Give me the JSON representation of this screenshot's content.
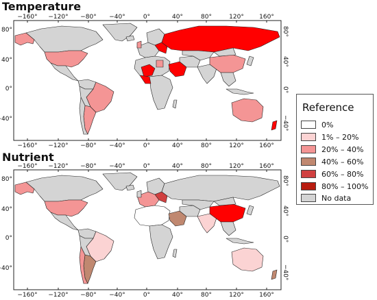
{
  "maps": [
    {
      "title": "Temperature"
    },
    {
      "title": "Nutrient"
    }
  ],
  "axes": {
    "lon_ticks": [
      "−160°",
      "−120°",
      "−80°",
      "−40°",
      "0°",
      "40°",
      "80°",
      "120°",
      "160°"
    ],
    "lat_ticks": [
      "80°",
      "40°",
      "0°",
      "−40°"
    ]
  },
  "legend": {
    "title": "Reference",
    "items": [
      {
        "label": "0%",
        "color": "#ffffff"
      },
      {
        "label": "1% – 20%",
        "color": "#fbd3d3"
      },
      {
        "label": "20% – 40%",
        "color": "#f49595"
      },
      {
        "label": "40% – 60%",
        "color": "#c08870"
      },
      {
        "label": "60% – 80%",
        "color": "#d04040"
      },
      {
        "label": "80% – 100%",
        "color": "#b81c10"
      },
      {
        "label": "No data",
        "color": "#d4d4d4"
      }
    ]
  },
  "colors": {
    "ocean": "#ffffff",
    "border": "#222222",
    "bright_red": "#ff0000"
  }
}
